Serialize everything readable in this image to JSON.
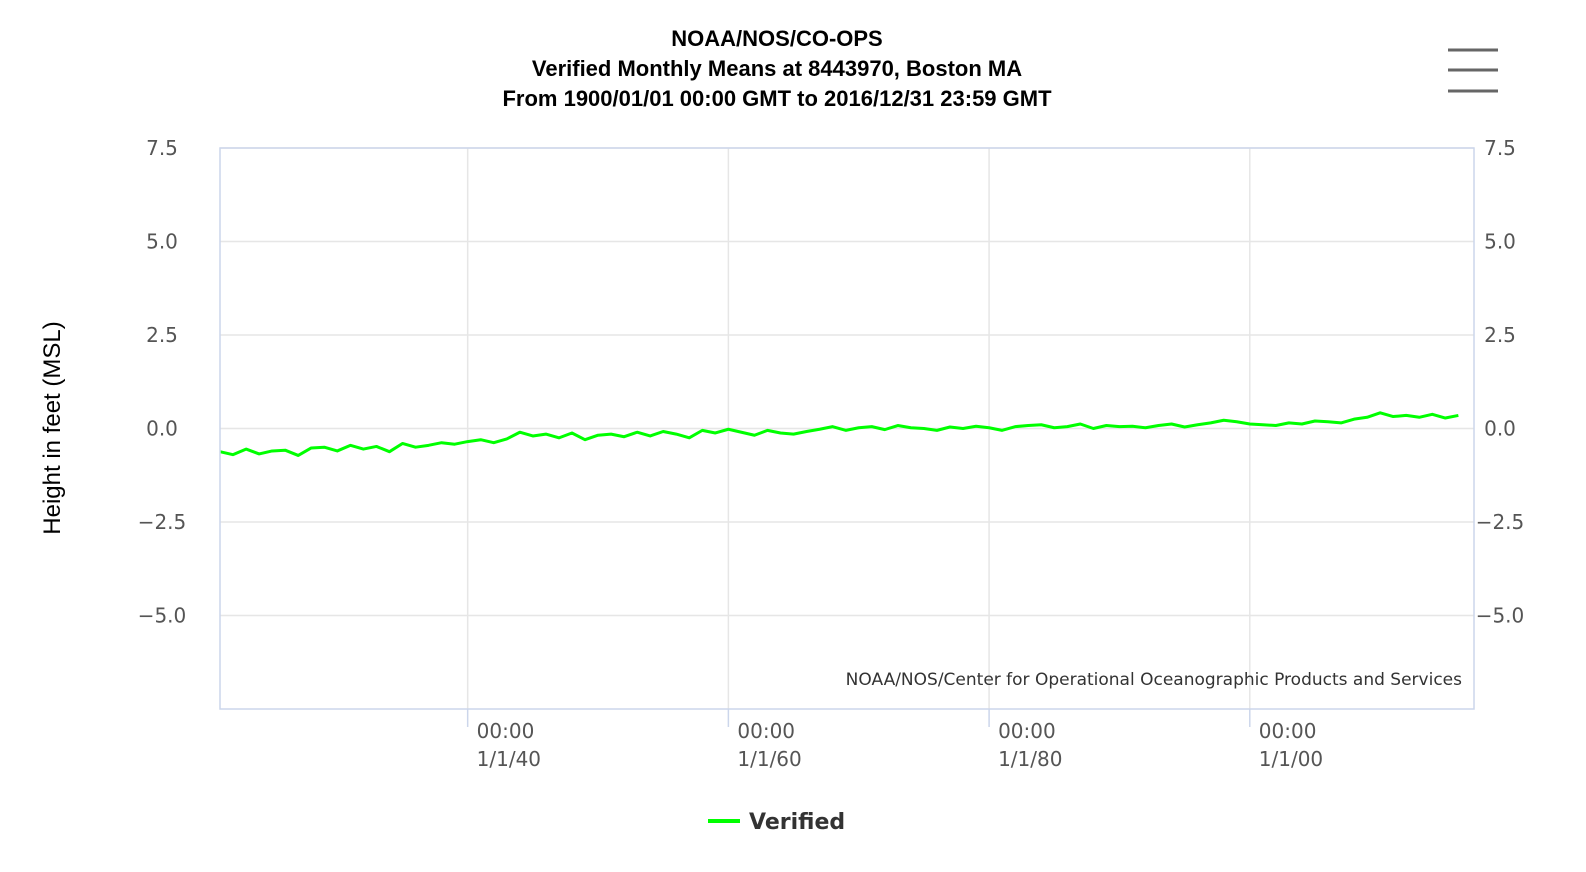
{
  "chart_data": {
    "type": "line",
    "title": [
      "NOAA/NOS/CO-OPS",
      "Verified Monthly Means at 8443970, Boston MA",
      "From 1900/01/01 00:00 GMT to 2016/12/31 23:59 GMT"
    ],
    "y_label": "Height in feet (MSL)",
    "credit": "NOAA/NOS/Center for Operational Oceanographic Products and Services",
    "x": [
      1921,
      1922,
      1923,
      1924,
      1925,
      1926,
      1927,
      1928,
      1929,
      1930,
      1931,
      1932,
      1933,
      1934,
      1935,
      1936,
      1937,
      1938,
      1939,
      1940,
      1941,
      1942,
      1943,
      1944,
      1945,
      1946,
      1947,
      1948,
      1949,
      1950,
      1951,
      1952,
      1953,
      1954,
      1955,
      1956,
      1957,
      1958,
      1959,
      1960,
      1961,
      1962,
      1963,
      1964,
      1965,
      1966,
      1967,
      1968,
      1969,
      1970,
      1971,
      1972,
      1973,
      1974,
      1975,
      1976,
      1977,
      1978,
      1979,
      1980,
      1981,
      1982,
      1983,
      1984,
      1985,
      1986,
      1987,
      1988,
      1989,
      1990,
      1991,
      1992,
      1993,
      1994,
      1995,
      1996,
      1997,
      1998,
      1999,
      2000,
      2001,
      2002,
      2003,
      2004,
      2005,
      2006,
      2007,
      2008,
      2009,
      2010,
      2011,
      2012,
      2013,
      2014,
      2015,
      2016
    ],
    "series": [
      {
        "name": "Verified",
        "color": "#00ff00",
        "values": [
          -0.62,
          -0.7,
          -0.55,
          -0.68,
          -0.6,
          -0.58,
          -0.72,
          -0.52,
          -0.5,
          -0.6,
          -0.45,
          -0.55,
          -0.48,
          -0.62,
          -0.4,
          -0.5,
          -0.45,
          -0.38,
          -0.42,
          -0.35,
          -0.3,
          -0.38,
          -0.28,
          -0.1,
          -0.2,
          -0.15,
          -0.25,
          -0.12,
          -0.3,
          -0.18,
          -0.15,
          -0.22,
          -0.1,
          -0.2,
          -0.08,
          -0.15,
          -0.25,
          -0.05,
          -0.12,
          -0.02,
          -0.1,
          -0.18,
          -0.05,
          -0.12,
          -0.15,
          -0.08,
          -0.02,
          0.05,
          -0.05,
          0.02,
          0.05,
          -0.03,
          0.08,
          0.02,
          0.0,
          -0.05,
          0.04,
          0.0,
          0.06,
          0.02,
          -0.05,
          0.05,
          0.08,
          0.1,
          0.02,
          0.05,
          0.12,
          0.0,
          0.08,
          0.05,
          0.06,
          0.02,
          0.08,
          0.12,
          0.04,
          0.1,
          0.15,
          0.22,
          0.18,
          0.12,
          0.1,
          0.08,
          0.15,
          0.12,
          0.2,
          0.18,
          0.15,
          0.25,
          0.3,
          0.42,
          0.32,
          0.35,
          0.3,
          0.38,
          0.28,
          0.35
        ]
      }
    ],
    "xlim": [
      1921,
      2017.2
    ],
    "xticks": [
      {
        "value": 1940,
        "label": "00:00\n1/1/40"
      },
      {
        "value": 1960,
        "label": "00:00\n1/1/60"
      },
      {
        "value": 1980,
        "label": "00:00\n1/1/80"
      },
      {
        "value": 2000,
        "label": "00:00\n1/1/00"
      }
    ],
    "ylim": [
      -7.5,
      7.5
    ],
    "yticks": [
      {
        "value": -5,
        "label": "−5.0"
      },
      {
        "value": -2.5,
        "label": "−2.5"
      },
      {
        "value": 0,
        "label": "0.0"
      },
      {
        "value": 2.5,
        "label": "2.5"
      },
      {
        "value": 5,
        "label": "5.0"
      },
      {
        "value": 7.5,
        "label": "7.5"
      }
    ],
    "grid": true
  }
}
